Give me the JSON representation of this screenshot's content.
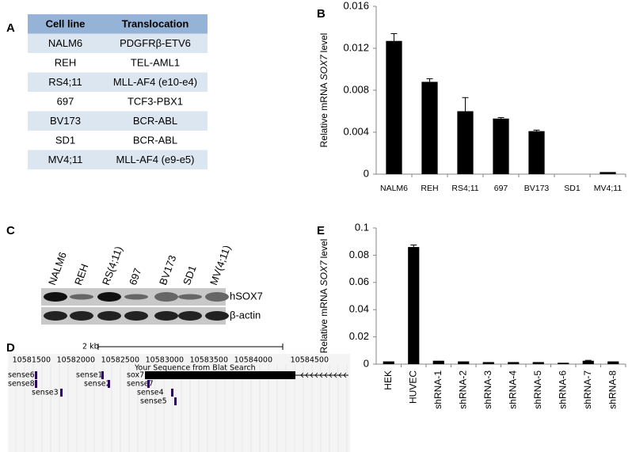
{
  "panel_labels": [
    "A",
    "B",
    "C",
    "D",
    "E"
  ],
  "table": {
    "header": [
      "Cell line",
      "Translocation"
    ],
    "rows": [
      [
        "NALM6",
        "PDGFRβ-ETV6"
      ],
      [
        "REH",
        "TEL-AML1"
      ],
      [
        "RS4;11",
        "MLL-AF4 (e10-e4)"
      ],
      [
        "697",
        "TCF3-PBX1"
      ],
      [
        "BV173",
        "BCR-ABL"
      ],
      [
        "SD1",
        "BCR-ABL"
      ],
      [
        "MV4;11",
        "MLL-AF4 (e9-e5)"
      ]
    ]
  },
  "chart_data": [
    {
      "type": "bar",
      "y_label_prefix": "Relative mRNA",
      "y_label_italic": "SOX7",
      "y_label_suffix": "level",
      "categories": [
        "NALM6",
        "REH",
        "RS4;11",
        "697",
        "BV173",
        "SD1",
        "MV4;11"
      ],
      "series": [
        {
          "color": "#000000",
          "values": [
            0.0127,
            0.0088,
            0.006,
            0.0053,
            0.0041,
            0,
            0.0002
          ],
          "errors": [
            0.0007,
            0.0003,
            0.0013,
            0.0001,
            0.0001,
            0,
            0
          ]
        }
      ],
      "ylim": [
        0,
        0.016
      ],
      "yticks": [
        0,
        0.004,
        0.008,
        0.012,
        0.016
      ]
    },
    {
      "type": "bar",
      "y_label_prefix": "Relative mRNA",
      "y_label_italic": "SOX7",
      "y_label_suffix": "level",
      "categories": [
        "HEK",
        "HUVEC",
        "shRNA-1",
        "shRNA-2",
        "shRNA-3",
        "shRNA-4",
        "shRNA-5",
        "shRNA-6",
        "shRNA-7",
        "shRNA-8"
      ],
      "series": [
        {
          "color": "#000000",
          "values": [
            0.002,
            0.086,
            0.0025,
            0.002,
            0.0015,
            0.0015,
            0.0015,
            0.001,
            0.0025,
            0.002
          ],
          "errors": [
            0,
            0.0015,
            0,
            0,
            0,
            0,
            0,
            0,
            0.0003,
            0
          ]
        }
      ],
      "ylim": [
        0,
        0.1
      ],
      "yticks": [
        0,
        0.02,
        0.04,
        0.06,
        0.08,
        0.1
      ]
    }
  ],
  "blot": {
    "lanes": [
      "NALM6",
      "REH",
      "RS(4;11)",
      "697",
      "BV173",
      "SD1",
      "MV(4;11)"
    ],
    "bands": [
      "hSOX7",
      "β-actin"
    ]
  },
  "genome": {
    "scale": "2 kb",
    "coordinates": [
      "10581500",
      "10582000",
      "10582500",
      "10583000",
      "10583500",
      "10584000",
      "10584500"
    ],
    "track_title": "Your Sequence from Blat Search",
    "features": [
      "sense6",
      "sense8",
      "sense3",
      "sense1",
      "sense2",
      "sox7",
      "sense7",
      "sense4",
      "sense5"
    ]
  }
}
